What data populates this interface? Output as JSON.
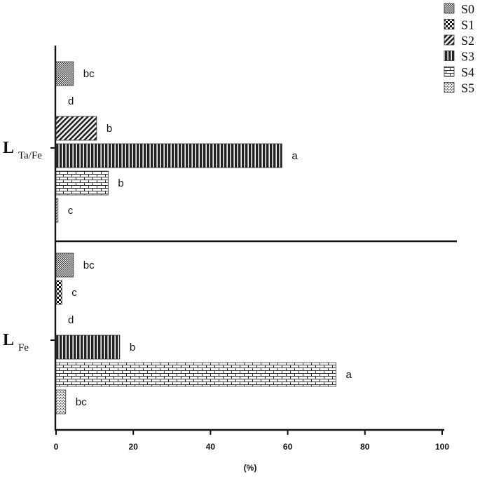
{
  "chart_data": {
    "type": "bar",
    "orientation": "horizontal",
    "categories": [
      "L Ta/Fe",
      "L Fe"
    ],
    "category_labels": [
      {
        "main": "L",
        "sub": "Ta/Fe"
      },
      {
        "main": "L",
        "sub": "Fe"
      }
    ],
    "xlabel": "(%)",
    "ylabel": "",
    "xlim": [
      0,
      100
    ],
    "xticks": [
      "0",
      "20",
      "40",
      "60",
      "80",
      "100"
    ],
    "legend_position": "top-right",
    "series": [
      {
        "name": "S0",
        "pattern": "crosshatch",
        "values": [
          4.5,
          4.5
        ],
        "letters": [
          "bc",
          "bc"
        ]
      },
      {
        "name": "S1",
        "pattern": "checker",
        "values": [
          0,
          1.5
        ],
        "letters": [
          "d",
          "c"
        ]
      },
      {
        "name": "S2",
        "pattern": "diagonal",
        "values": [
          10.5,
          0
        ],
        "letters": [
          "b",
          "d"
        ]
      },
      {
        "name": "S3",
        "pattern": "vertical",
        "values": [
          58.5,
          16.5
        ],
        "letters": [
          "a",
          "b"
        ]
      },
      {
        "name": "S4",
        "pattern": "brick",
        "values": [
          13.5,
          72.5
        ],
        "letters": [
          "b",
          "a"
        ]
      },
      {
        "name": "S5",
        "pattern": "dots",
        "values": [
          0.5,
          2.5
        ],
        "letters": [
          "c",
          "bc"
        ]
      }
    ],
    "colors": {
      "ink": "#1a1a1a",
      "background": "#ffffff"
    }
  }
}
